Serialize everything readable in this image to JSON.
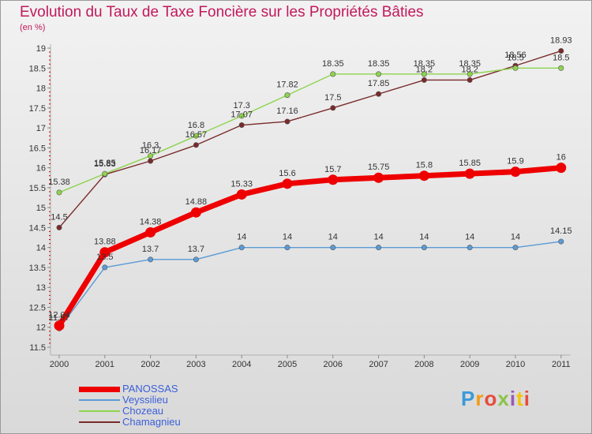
{
  "header": {
    "title": "Evolution du Taux de Taxe Foncière sur les Propriétés Bâties",
    "unit": "(en %)"
  },
  "brand": {
    "logo_text": "Proxiti"
  },
  "chart_data": {
    "type": "line",
    "title": "Evolution du Taux de Taxe Foncière sur les Propriétés Bâties",
    "ylabel": "(en %)",
    "xlabel": "",
    "ylim": [
      11.5,
      19
    ],
    "yticks": [
      "11.5",
      "12",
      "12.5",
      "13",
      "13.5",
      "14",
      "14.5",
      "15",
      "15.5",
      "16",
      "16.5",
      "17",
      "17.5",
      "18",
      "18.5",
      "19"
    ],
    "categories": [
      "2000",
      "2001",
      "2002",
      "2003",
      "2004",
      "2005",
      "2006",
      "2007",
      "2008",
      "2009",
      "2010",
      "2011"
    ],
    "grid": false,
    "legend": "bottom-left",
    "series": [
      {
        "name": "PANOSSAS",
        "color": "#ee0000",
        "values": [
          12.04,
          13.88,
          14.38,
          14.88,
          15.33,
          15.6,
          15.7,
          15.75,
          15.8,
          15.85,
          15.9,
          16
        ],
        "labels": [
          "12.04",
          "13.88",
          "14.38",
          "14.88",
          "15.33",
          "15.6",
          "15.7",
          "15.75",
          "15.8",
          "15.85",
          "15.9",
          "16"
        ]
      },
      {
        "name": "Veyssilieu",
        "color": "#5b9bd5",
        "values": [
          11.97,
          13.5,
          13.7,
          13.7,
          14,
          14,
          14,
          14,
          14,
          14,
          14,
          14.15
        ],
        "labels": [
          "11.97",
          "13.5",
          "13.7",
          "13.7",
          "14",
          "14",
          "14",
          "14",
          "14",
          "14",
          "14",
          "14.15"
        ]
      },
      {
        "name": "Chozeau",
        "color": "#8ed44f",
        "values": [
          15.38,
          15.85,
          16.3,
          16.8,
          17.3,
          17.82,
          18.35,
          18.35,
          18.35,
          18.35,
          18.5,
          18.5
        ],
        "labels": [
          "15.38",
          "15.85",
          "16.3",
          "16.8",
          "17.3",
          "17.82",
          "18.35",
          "18.35",
          "18.35",
          "18.35",
          "18.5",
          "18.5"
        ]
      },
      {
        "name": "Chamagnieu",
        "color": "#7a2a2a",
        "values": [
          14.5,
          15.83,
          16.17,
          16.57,
          17.07,
          17.16,
          17.5,
          17.85,
          18.2,
          18.2,
          18.56,
          18.93
        ],
        "labels": [
          "14.5",
          "15.83",
          "16.17",
          "16.57",
          "17.07",
          "17.16",
          "17.5",
          "17.85",
          "18.2",
          "18.2",
          "18.56",
          "18.93"
        ]
      }
    ]
  }
}
